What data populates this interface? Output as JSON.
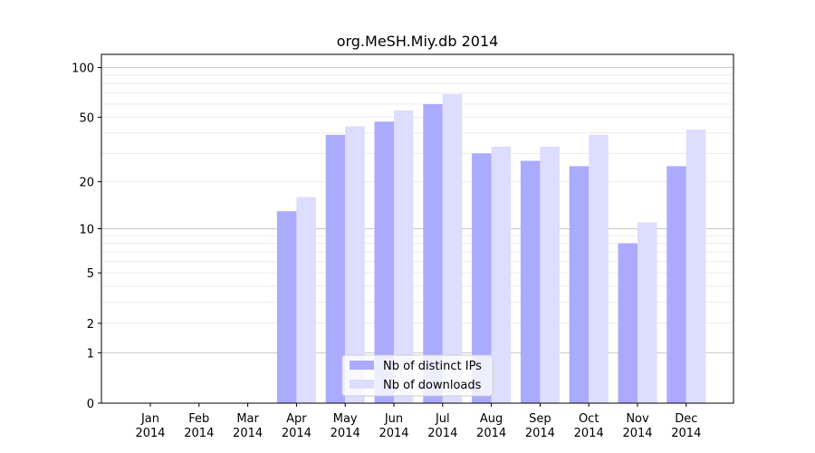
{
  "chart_data": {
    "type": "bar",
    "title": "org.MeSH.Miy.db 2014",
    "xlabel": "",
    "ylabel": "",
    "categories": [
      "Jan\n2014",
      "Feb\n2014",
      "Mar\n2014",
      "Apr\n2014",
      "May\n2014",
      "Jun\n2014",
      "Jul\n2014",
      "Aug\n2014",
      "Sep\n2014",
      "Oct\n2014",
      "Nov\n2014",
      "Dec\n2014"
    ],
    "series": [
      {
        "name": "Nb of distinct IPs",
        "color": "#aaaaff",
        "values": [
          0,
          0,
          0,
          13,
          39,
          47,
          60,
          30,
          27,
          25,
          8,
          25
        ]
      },
      {
        "name": "Nb of downloads",
        "color": "#ddddff",
        "values": [
          0,
          0,
          0,
          16,
          44,
          55,
          69,
          33,
          33,
          39,
          11,
          42
        ]
      }
    ],
    "y_scale": "symlog",
    "ylim": [
      0,
      120
    ],
    "y_ticks": [
      0,
      1,
      2,
      5,
      10,
      20,
      50,
      100
    ],
    "grid": "horizontal",
    "legend_position": "lower center"
  }
}
